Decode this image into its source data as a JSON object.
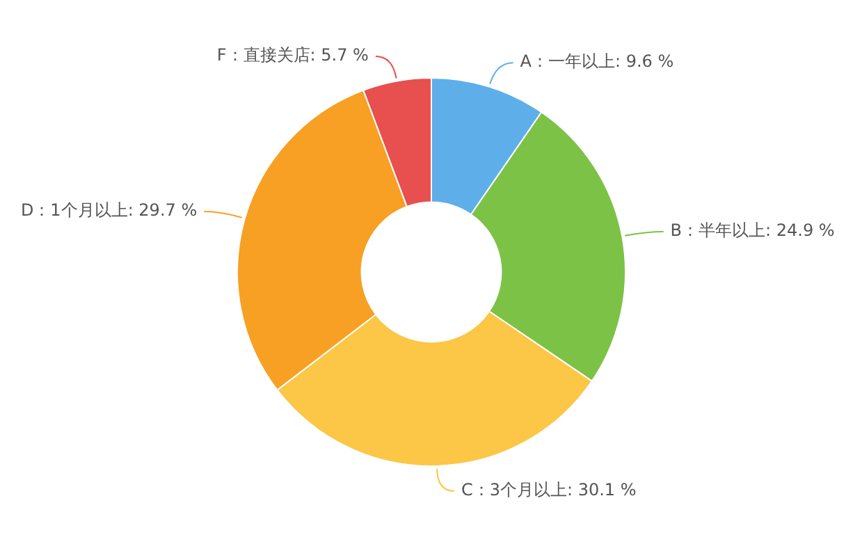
{
  "chart_data": {
    "type": "donut",
    "categories": [
      "A：一年以上",
      "B：半年以上",
      "C：3个月以上",
      "D：1个月以上",
      "F：直接关店"
    ],
    "values": [
      9.6,
      24.9,
      30.1,
      29.7,
      5.7
    ],
    "colors": [
      "#5eaeea",
      "#7cc246",
      "#fcc646",
      "#f7a023",
      "#e84f4f"
    ],
    "value_labels": [
      "9.6 %",
      "24.9 %",
      "30.1 %",
      "29.7 %",
      "5.7 %"
    ],
    "legend": false
  }
}
